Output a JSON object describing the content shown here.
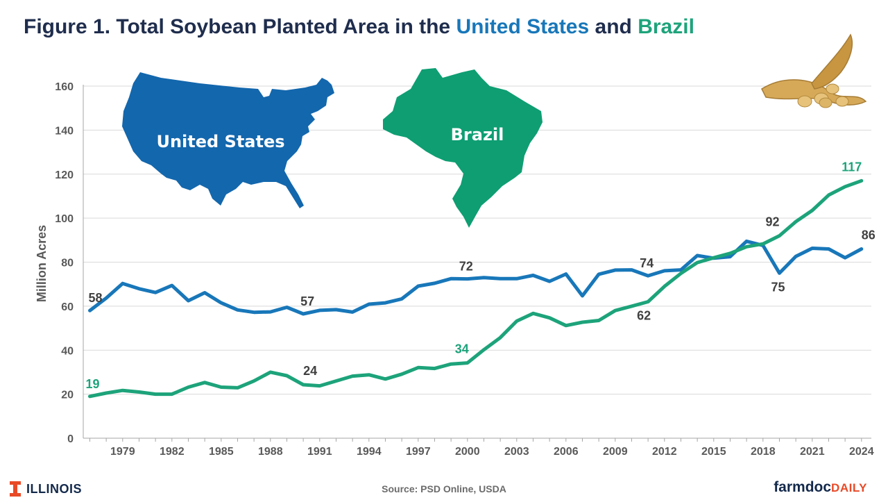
{
  "title": {
    "prefix": "Figure 1. Total Soybean Planted Area in the",
    "us": "United States",
    "and": "and",
    "br": "Brazil"
  },
  "source": "Source: PSD Online, USDA",
  "brand_left": "ILLINOIS",
  "brand_right_main": "farmdoc",
  "brand_right_accent": "DAILY",
  "map_labels": {
    "us": "United States",
    "br": "Brazil"
  },
  "colors": {
    "us": "#1877b9",
    "br": "#1da37a",
    "title": "#1f2d4d",
    "illinois_orange": "#e84a27",
    "illinois_blue": "#13294b"
  },
  "icons": [
    "us-map-icon",
    "brazil-map-icon",
    "soybean-pods-icon",
    "illinois-block-i-icon"
  ],
  "chart_data": {
    "type": "line",
    "title": "Figure 1. Total Soybean Planted Area in the United States and Brazil",
    "xlabel": "",
    "ylabel": "Million Acres",
    "ylim": [
      0,
      160
    ],
    "yticks": [
      0,
      20,
      40,
      60,
      80,
      100,
      120,
      140,
      160
    ],
    "xlim": [
      1977,
      2024
    ],
    "xticks": [
      1979,
      1982,
      1985,
      1988,
      1991,
      1994,
      1997,
      2000,
      2003,
      2006,
      2009,
      2012,
      2015,
      2018,
      2021,
      2024
    ],
    "grid": true,
    "legend": "none",
    "x": [
      1977,
      1978,
      1979,
      1980,
      1981,
      1982,
      1983,
      1984,
      1985,
      1986,
      1987,
      1988,
      1989,
      1990,
      1991,
      1992,
      1993,
      1994,
      1995,
      1996,
      1997,
      1998,
      1999,
      2000,
      2001,
      2002,
      2003,
      2004,
      2005,
      2006,
      2007,
      2008,
      2009,
      2010,
      2011,
      2012,
      2013,
      2014,
      2015,
      2016,
      2017,
      2018,
      2019,
      2020,
      2021,
      2022,
      2023,
      2024
    ],
    "series": [
      {
        "name": "United States",
        "color": "#1877b9",
        "values": [
          58,
          63.7,
          70.3,
          67.9,
          66.2,
          69.4,
          62.5,
          66.1,
          61.5,
          58.3,
          57.2,
          57.4,
          59.5,
          56.5,
          58.1,
          58.4,
          57.3,
          60.9,
          61.5,
          63.3,
          69.1,
          70.4,
          72.5,
          72.4,
          73,
          72.5,
          72.5,
          74,
          71.3,
          74.6,
          64.7,
          74.5,
          76.4,
          76.5,
          73.8,
          76.1,
          76.5,
          83,
          81.8,
          82.5,
          89.5,
          87.6,
          75,
          82.6,
          86.3,
          86,
          82,
          86
        ]
      },
      {
        "name": "Brazil",
        "color": "#1da37a",
        "values": [
          19,
          20.5,
          21.7,
          21,
          20,
          20,
          23.2,
          25.3,
          23.2,
          22.9,
          26,
          30,
          28.4,
          24.3,
          23.8,
          26,
          28.2,
          28.8,
          26.9,
          29.1,
          32.1,
          31.7,
          33.7,
          34.2,
          40.2,
          45.7,
          53.2,
          56.7,
          54.7,
          51.2,
          52.7,
          53.5,
          58,
          60,
          62,
          69,
          74.9,
          79.8,
          82,
          84,
          87,
          88.3,
          92,
          98.4,
          103.5,
          110.5,
          114.3,
          117
        ]
      }
    ],
    "annotations": [
      {
        "series": "United States",
        "x": 1977,
        "label": "58"
      },
      {
        "series": "United States",
        "x": 1990,
        "label": "57"
      },
      {
        "series": "United States",
        "x": 2000,
        "label": "72"
      },
      {
        "series": "United States",
        "x": 2011,
        "label": "74"
      },
      {
        "series": "United States",
        "x": 2019,
        "label": "75"
      },
      {
        "series": "United States",
        "x": 2024,
        "label": "86"
      },
      {
        "series": "Brazil",
        "x": 1977,
        "label": "19"
      },
      {
        "series": "Brazil",
        "x": 1990,
        "label": "24"
      },
      {
        "series": "Brazil",
        "x": 2000,
        "label": "34"
      },
      {
        "series": "Brazil",
        "x": 2011,
        "label": "62"
      },
      {
        "series": "Brazil",
        "x": 2019,
        "label": "92"
      },
      {
        "series": "Brazil",
        "x": 2024,
        "label": "117"
      }
    ]
  }
}
